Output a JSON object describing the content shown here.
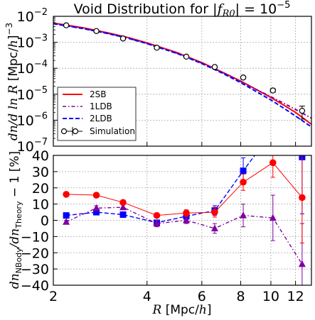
{
  "title": "Void Distribution for |f_R0| = 10^-5",
  "chart_data": [
    {
      "panel": "top",
      "type": "line",
      "xlabel": "",
      "ylabel": "dn/dlnR [Mpc/h]^-3",
      "xscale": "log",
      "yscale": "log",
      "xlim": [
        2,
        13.5
      ],
      "ylim": [
        1e-07,
        0.01
      ],
      "yticklabels": [
        "10^-7",
        "10^-6",
        "10^-5",
        "10^-4",
        "10^-3",
        "10^-2"
      ],
      "grid": true,
      "legend_position": "bottom-left",
      "series": [
        {
          "name": "2SB",
          "color": "#ff0000",
          "style": "solid",
          "x": [
            2.0,
            2.5,
            3.0,
            3.5,
            4.0,
            5.0,
            6.0,
            7.0,
            8.0,
            9.0,
            10.0,
            11.0,
            12.0,
            13.5
          ],
          "y": [
            0.0055,
            0.0036,
            0.0023,
            0.0015,
            0.00095,
            0.0004,
            0.000165,
            7e-05,
            3.2e-05,
            1.5e-05,
            7.5e-06,
            3.8e-06,
            2e-06,
            7e-07
          ]
        },
        {
          "name": "1LDB",
          "color": "#8000a0",
          "style": "dashdot",
          "x": [
            2.0,
            2.5,
            3.0,
            3.5,
            4.0,
            5.0,
            6.0,
            7.0,
            8.0,
            9.0,
            10.0,
            11.0,
            12.0,
            13.5
          ],
          "y": [
            0.0053,
            0.0034,
            0.0022,
            0.00142,
            0.0009,
            0.00038,
            0.000158,
            6.8e-05,
            3.1e-05,
            1.5e-05,
            8e-06,
            4.5e-06,
            2.6e-06,
            1.2e-06
          ]
        },
        {
          "name": "2LDB",
          "color": "#0000ff",
          "style": "dashed",
          "x": [
            2.0,
            2.5,
            3.0,
            3.5,
            4.0,
            5.0,
            6.0,
            7.0,
            8.0,
            9.0,
            10.0,
            11.0,
            12.0,
            13.5
          ],
          "y": [
            0.0052,
            0.00335,
            0.00215,
            0.0014,
            0.00089,
            0.00037,
            0.000152,
            6.4e-05,
            2.8e-05,
            1.25e-05,
            6e-06,
            2.9e-06,
            1.45e-06,
            5.5e-07
          ]
        },
        {
          "name": "Simulation",
          "color": "#000000",
          "style": "markers",
          "x": [
            2.2,
            2.75,
            3.35,
            4.3,
            5.35,
            6.6,
            8.15,
            10.15,
            12.6
          ],
          "y": [
            0.0045,
            0.0027,
            0.0014,
            0.00062,
            0.00028,
            0.000112,
            4.4e-05,
            1.4e-05,
            2.3e-06
          ],
          "yerr": [
            0.0003,
            0.0002,
            0.0001,
            4e-05,
            2e-05,
            1e-05,
            4e-06,
            2e-06,
            1.2e-06
          ]
        }
      ]
    },
    {
      "panel": "bottom",
      "type": "line",
      "xlabel": "R [Mpc/h]",
      "ylabel": "dn_NBody/dn_Theory - 1 [%]",
      "xscale": "log",
      "xlim": [
        2,
        13.5
      ],
      "ylim": [
        -40,
        40
      ],
      "xticklabels": [
        "2",
        "4",
        "6",
        "8",
        "10",
        "12"
      ],
      "yticklabels": [
        "-40",
        "-30",
        "-20",
        "-10",
        "0",
        "10",
        "20",
        "30",
        "40"
      ],
      "grid": true,
      "series": [
        {
          "name": "2SB",
          "color": "#ff0000",
          "style": "solid",
          "marker": "circle",
          "x": [
            2.2,
            2.75,
            3.35,
            4.3,
            5.35,
            6.6,
            8.15,
            10.15,
            12.6
          ],
          "y": [
            16,
            15.5,
            11,
            3,
            4.5,
            5,
            23.5,
            35.5,
            14
          ],
          "yerr": [
            1,
            1,
            1.5,
            1.5,
            2,
            3,
            5,
            9,
            28
          ]
        },
        {
          "name": "1LDB",
          "color": "#8000a0",
          "style": "dashdot",
          "marker": "triangle",
          "x": [
            2.2,
            2.75,
            3.35,
            4.3,
            5.35,
            6.6,
            8.15,
            10.15,
            12.6
          ],
          "y": [
            -1,
            7.5,
            8,
            -2,
            0,
            -5,
            3,
            1.5,
            -27
          ],
          "yerr": [
            1,
            1.5,
            1.5,
            2,
            2,
            3,
            7,
            14,
            25
          ]
        },
        {
          "name": "2LDB",
          "color": "#0000ff",
          "style": "dashed",
          "marker": "square",
          "x": [
            2.2,
            2.75,
            3.35,
            4.3,
            5.35,
            6.6,
            8.15,
            10.15,
            12.6
          ],
          "y": [
            3,
            5,
            3.5,
            -1.5,
            2.5,
            6,
            30.5,
            55,
            39
          ],
          "yerr": [
            1,
            1,
            1.5,
            1.5,
            2,
            3,
            8,
            15,
            35
          ]
        }
      ]
    }
  ]
}
